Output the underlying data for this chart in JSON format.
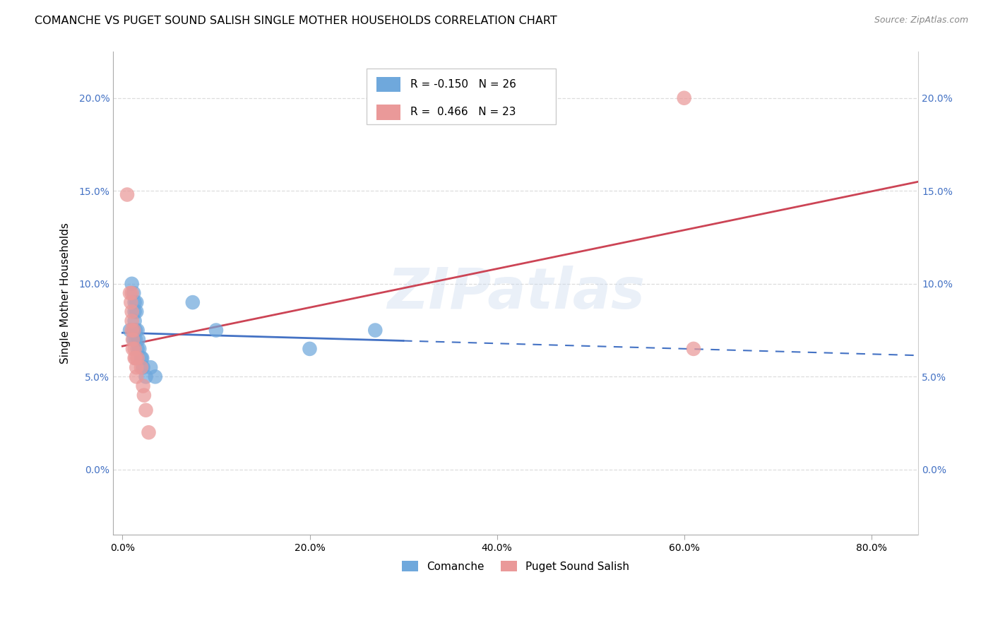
{
  "title": "COMANCHE VS PUGET SOUND SALISH SINGLE MOTHER HOUSEHOLDS CORRELATION CHART",
  "source": "Source: ZipAtlas.com",
  "ylabel": "Single Mother Households",
  "xlabel_ticks": [
    "0.0%",
    "20.0%",
    "40.0%",
    "60.0%",
    "80.0%"
  ],
  "xlabel_tick_vals": [
    0.0,
    0.2,
    0.4,
    0.6,
    0.8
  ],
  "ylabel_ticks": [
    "0.0%",
    "5.0%",
    "10.0%",
    "15.0%",
    "20.0%"
  ],
  "ylabel_tick_vals": [
    0.0,
    0.05,
    0.1,
    0.15,
    0.2
  ],
  "xlim": [
    -0.01,
    0.85
  ],
  "ylim": [
    -0.035,
    0.225
  ],
  "legend_blue_r": "-0.150",
  "legend_blue_n": "26",
  "legend_pink_r": "0.466",
  "legend_pink_n": "23",
  "watermark": "ZIPatlas",
  "blue_color": "#6fa8dc",
  "pink_color": "#ea9999",
  "blue_line_color": "#4472c4",
  "pink_line_color": "#cc4455",
  "title_fontsize": 11.5,
  "tick_fontsize": 10,
  "legend_fontsize": 11,
  "blue_scatter": [
    [
      0.008,
      0.075
    ],
    [
      0.01,
      0.1
    ],
    [
      0.012,
      0.095
    ],
    [
      0.012,
      0.075
    ],
    [
      0.012,
      0.07
    ],
    [
      0.013,
      0.09
    ],
    [
      0.013,
      0.085
    ],
    [
      0.013,
      0.08
    ],
    [
      0.014,
      0.075
    ],
    [
      0.014,
      0.07
    ],
    [
      0.015,
      0.09
    ],
    [
      0.015,
      0.085
    ],
    [
      0.016,
      0.075
    ],
    [
      0.016,
      0.065
    ],
    [
      0.017,
      0.07
    ],
    [
      0.018,
      0.065
    ],
    [
      0.02,
      0.06
    ],
    [
      0.021,
      0.06
    ],
    [
      0.022,
      0.055
    ],
    [
      0.025,
      0.05
    ],
    [
      0.03,
      0.055
    ],
    [
      0.035,
      0.05
    ],
    [
      0.075,
      0.09
    ],
    [
      0.1,
      0.075
    ],
    [
      0.2,
      0.065
    ],
    [
      0.27,
      0.075
    ]
  ],
  "pink_scatter": [
    [
      0.005,
      0.148
    ],
    [
      0.008,
      0.095
    ],
    [
      0.009,
      0.09
    ],
    [
      0.01,
      0.095
    ],
    [
      0.01,
      0.085
    ],
    [
      0.01,
      0.08
    ],
    [
      0.01,
      0.075
    ],
    [
      0.011,
      0.07
    ],
    [
      0.011,
      0.065
    ],
    [
      0.012,
      0.075
    ],
    [
      0.013,
      0.065
    ],
    [
      0.013,
      0.06
    ],
    [
      0.014,
      0.06
    ],
    [
      0.015,
      0.055
    ],
    [
      0.015,
      0.05
    ],
    [
      0.016,
      0.06
    ],
    [
      0.02,
      0.055
    ],
    [
      0.022,
      0.045
    ],
    [
      0.023,
      0.04
    ],
    [
      0.025,
      0.032
    ],
    [
      0.028,
      0.02
    ],
    [
      0.6,
      0.2
    ],
    [
      0.61,
      0.065
    ]
  ]
}
